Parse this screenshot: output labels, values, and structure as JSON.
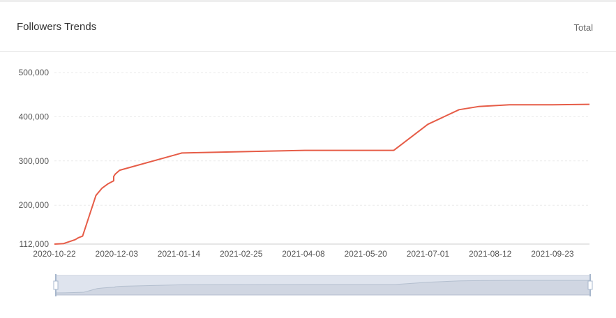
{
  "header": {
    "title": "Followers Trends",
    "total_label": "Total"
  },
  "colors": {
    "line": "#e65c47",
    "grid": "#e9e9e9",
    "axis_text": "#555555",
    "zoom_bg": "#dfe4ee",
    "zoom_fill": "#c2cad8",
    "zoom_handle": "#a7b7cc"
  },
  "chart_data": {
    "type": "line",
    "title": "Followers Trends",
    "xlabel": "",
    "ylabel": "",
    "x_ticks": [
      "2020-10-22",
      "2020-12-03",
      "2021-01-14",
      "2021-02-25",
      "2021-04-08",
      "2021-05-20",
      "2021-07-01",
      "2021-08-12",
      "2021-09-23"
    ],
    "y_ticks": [
      "112,000",
      "200,000",
      "300,000",
      "400,000",
      "500,000"
    ],
    "ylim": [
      112000,
      500000
    ],
    "xlim": [
      "2020-10-22",
      "2021-10-18"
    ],
    "grid": true,
    "series": [
      {
        "x": [
          "2020-10-22",
          "2020-10-28",
          "2020-11-05",
          "2020-11-07",
          "2020-11-10",
          "2020-11-19",
          "2020-11-23",
          "2020-11-27",
          "2020-12-01",
          "2020-12-01",
          "2020-12-02",
          "2020-12-05",
          "2021-01-16",
          "2021-04-09",
          "2021-06-08",
          "2021-07-01",
          "2021-07-22",
          "2021-08-04",
          "2021-08-25",
          "2021-09-23",
          "2021-10-18"
        ],
        "values": [
          112000,
          113000,
          122000,
          126000,
          130000,
          222000,
          238000,
          248000,
          255000,
          265000,
          270000,
          279000,
          318000,
          324000,
          324000,
          383000,
          416000,
          423000,
          427000,
          427000,
          428000
        ]
      }
    ]
  }
}
